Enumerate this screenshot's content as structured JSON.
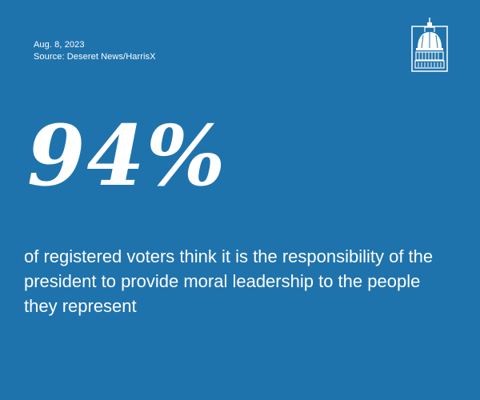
{
  "date": "Aug. 8, 2023",
  "source": "Source: Deseret News/HarrisX",
  "statistic": "94%",
  "description": "of registered voters think it is the responsibility of the president to provide moral leadership to the people they represent",
  "logo": {
    "icon": "capitol-dome-icon"
  },
  "colors": {
    "background": "#1f73ad",
    "text": "#ffffff"
  }
}
